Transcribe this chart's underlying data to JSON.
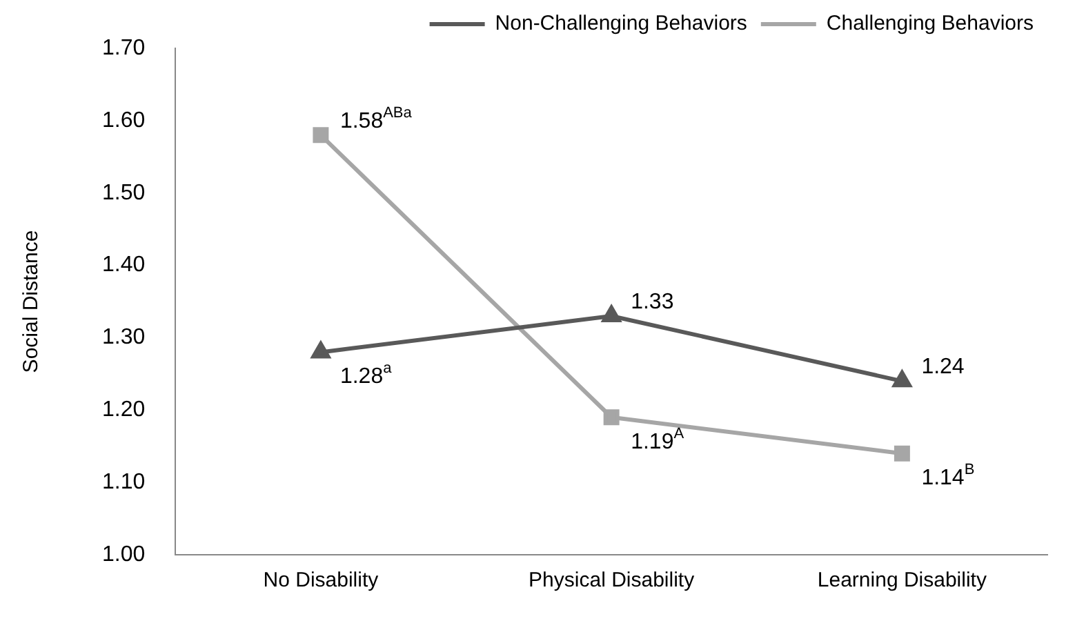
{
  "chart_data": {
    "type": "line",
    "ylabel": "Social Distance",
    "categories": [
      "No Disability",
      "Physical Disability",
      "Learning Disability"
    ],
    "series": [
      {
        "name": "Non-Challenging Behaviors",
        "color": "#595959",
        "marker": "triangle",
        "values": [
          1.28,
          1.33,
          1.24
        ],
        "value_labels": [
          "1.28$^{a}$",
          "1.33",
          "1.24"
        ]
      },
      {
        "name": "Challenging Behaviors",
        "color": "#a6a6a6",
        "marker": "square",
        "values": [
          1.58,
          1.19,
          1.14
        ],
        "value_labels": [
          "1.58$^{ABa}$",
          "1.19$^{A}$",
          "1.14$^{B}$"
        ]
      }
    ],
    "ylim": [
      1.0,
      1.7
    ],
    "yticks": [
      {
        "value": 1.0,
        "label": "1.00"
      },
      {
        "value": 1.1,
        "label": "1.10"
      },
      {
        "value": 1.2,
        "label": "1.20"
      },
      {
        "value": 1.3,
        "label": "1.30"
      },
      {
        "value": 1.4,
        "label": "1.40"
      },
      {
        "value": 1.5,
        "label": "1.50"
      },
      {
        "value": 1.6,
        "label": "1.60"
      },
      {
        "value": 1.7,
        "label": "1.70"
      }
    ],
    "grid": false,
    "legend": "top",
    "line_style": "solid"
  }
}
